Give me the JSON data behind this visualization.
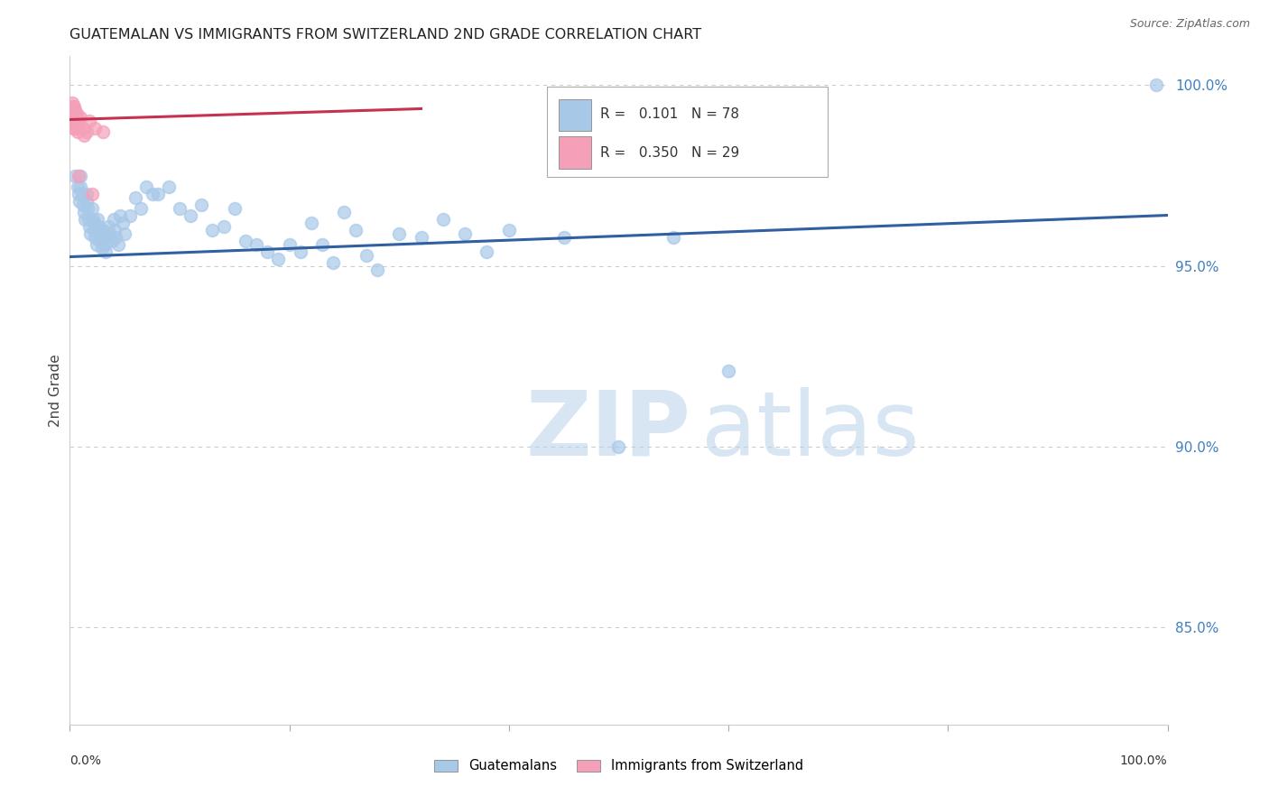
{
  "title": "GUATEMALAN VS IMMIGRANTS FROM SWITZERLAND 2ND GRADE CORRELATION CHART",
  "source": "Source: ZipAtlas.com",
  "ylabel": "2nd Grade",
  "right_yticks": [
    85.0,
    90.0,
    95.0,
    100.0
  ],
  "xlim": [
    0.0,
    1.0
  ],
  "ylim": [
    0.823,
    1.008
  ],
  "blue_scatter_x": [
    0.005,
    0.007,
    0.008,
    0.009,
    0.01,
    0.01,
    0.011,
    0.012,
    0.013,
    0.014,
    0.015,
    0.015,
    0.016,
    0.017,
    0.018,
    0.019,
    0.02,
    0.021,
    0.022,
    0.022,
    0.023,
    0.024,
    0.025,
    0.026,
    0.027,
    0.028,
    0.029,
    0.03,
    0.031,
    0.032,
    0.033,
    0.035,
    0.036,
    0.038,
    0.04,
    0.041,
    0.042,
    0.044,
    0.046,
    0.048,
    0.05,
    0.055,
    0.06,
    0.065,
    0.07,
    0.075,
    0.08,
    0.09,
    0.1,
    0.11,
    0.12,
    0.13,
    0.14,
    0.15,
    0.16,
    0.17,
    0.18,
    0.19,
    0.2,
    0.21,
    0.22,
    0.23,
    0.24,
    0.25,
    0.26,
    0.27,
    0.28,
    0.3,
    0.32,
    0.34,
    0.36,
    0.38,
    0.4,
    0.45,
    0.5,
    0.55,
    0.6,
    0.99
  ],
  "blue_scatter_y": [
    0.975,
    0.972,
    0.97,
    0.968,
    0.975,
    0.972,
    0.97,
    0.967,
    0.965,
    0.963,
    0.97,
    0.968,
    0.966,
    0.963,
    0.961,
    0.959,
    0.966,
    0.963,
    0.962,
    0.96,
    0.958,
    0.956,
    0.963,
    0.961,
    0.959,
    0.957,
    0.955,
    0.96,
    0.958,
    0.956,
    0.954,
    0.961,
    0.959,
    0.957,
    0.963,
    0.96,
    0.958,
    0.956,
    0.964,
    0.962,
    0.959,
    0.964,
    0.969,
    0.966,
    0.972,
    0.97,
    0.97,
    0.972,
    0.966,
    0.964,
    0.967,
    0.96,
    0.961,
    0.966,
    0.957,
    0.956,
    0.954,
    0.952,
    0.956,
    0.954,
    0.962,
    0.956,
    0.951,
    0.965,
    0.96,
    0.953,
    0.949,
    0.959,
    0.958,
    0.963,
    0.959,
    0.954,
    0.96,
    0.958,
    0.9,
    0.958,
    0.921,
    1.0
  ],
  "pink_scatter_x": [
    0.002,
    0.002,
    0.002,
    0.003,
    0.003,
    0.003,
    0.003,
    0.004,
    0.004,
    0.004,
    0.004,
    0.005,
    0.005,
    0.005,
    0.006,
    0.006,
    0.006,
    0.007,
    0.007,
    0.007,
    0.008,
    0.01,
    0.012,
    0.013,
    0.015,
    0.018,
    0.02,
    0.023,
    0.03
  ],
  "pink_scatter_y": [
    0.995,
    0.993,
    0.991,
    0.994,
    0.992,
    0.99,
    0.988,
    0.994,
    0.992,
    0.99,
    0.988,
    0.993,
    0.991,
    0.989,
    0.992,
    0.99,
    0.988,
    0.991,
    0.989,
    0.987,
    0.975,
    0.991,
    0.988,
    0.986,
    0.987,
    0.99,
    0.97,
    0.988,
    0.987
  ],
  "blue_line_x": [
    0.0,
    1.0
  ],
  "blue_line_y": [
    0.9525,
    0.964
  ],
  "pink_line_x": [
    0.0,
    0.32
  ],
  "pink_line_y": [
    0.9905,
    0.9935
  ],
  "blue_scatter_color": "#a8c8e8",
  "pink_scatter_color": "#f4a0b8",
  "blue_line_color": "#3060a0",
  "pink_line_color": "#c83050",
  "grid_color": "#cccccc",
  "right_axis_color": "#4080c0",
  "legend_blue_r": "0.101",
  "legend_blue_n": "78",
  "legend_pink_r": "0.350",
  "legend_pink_n": "29",
  "watermark_zip_color": "#b8d0e8",
  "watermark_atlas_color": "#b8d0e8"
}
